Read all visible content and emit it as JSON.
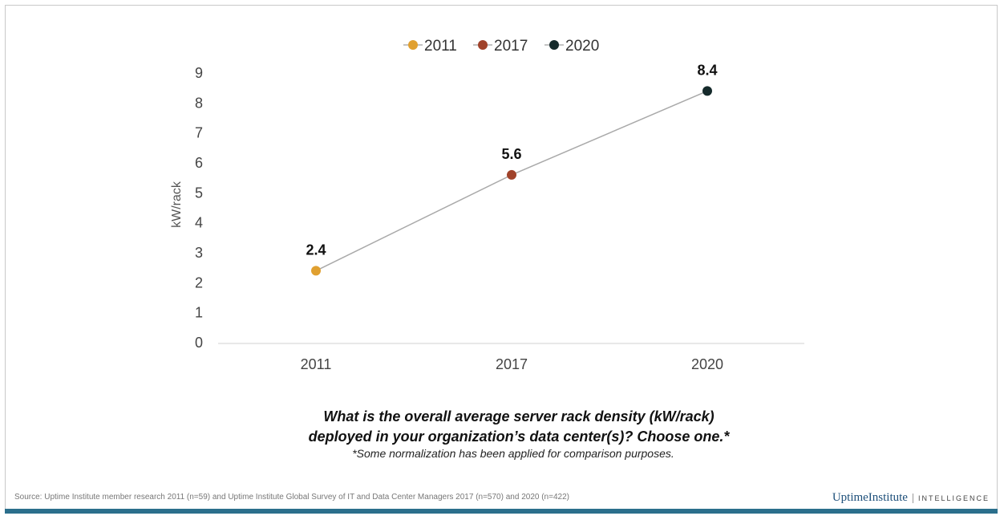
{
  "chart_data": {
    "type": "line",
    "categories": [
      "2011",
      "2017",
      "2020"
    ],
    "values": [
      2.4,
      5.6,
      8.4
    ],
    "data_labels": [
      "2.4",
      "5.6",
      "8.4"
    ],
    "ylabel": "kW/rack",
    "xlabel": "",
    "ylim": [
      0,
      9
    ],
    "yticks": [
      "0",
      "1",
      "2",
      "3",
      "4",
      "5",
      "6",
      "7",
      "8",
      "9"
    ],
    "legend": [
      {
        "name": "2011",
        "color": "#e0a030"
      },
      {
        "name": "2017",
        "color": "#a0422a"
      },
      {
        "name": "2020",
        "color": "#152a2b"
      }
    ],
    "legend_position": "top",
    "line_color": "#a9a9a9",
    "grid": false
  },
  "question_line1": "What is the overall average server rack density (kW/rack)",
  "question_line2": "deployed in your organization’s data center(s)? Choose one.*",
  "note": "*Some normalization has been applied for comparison purposes.",
  "source": "Source: Uptime Institute member research 2011 (n=59) and Uptime Institute Global Survey of IT and Data Center Managers 2017 (n=570) and 2020 (n=422)",
  "brand": {
    "name": "UptimeInstitute",
    "suffix": "INTELLIGENCE"
  }
}
